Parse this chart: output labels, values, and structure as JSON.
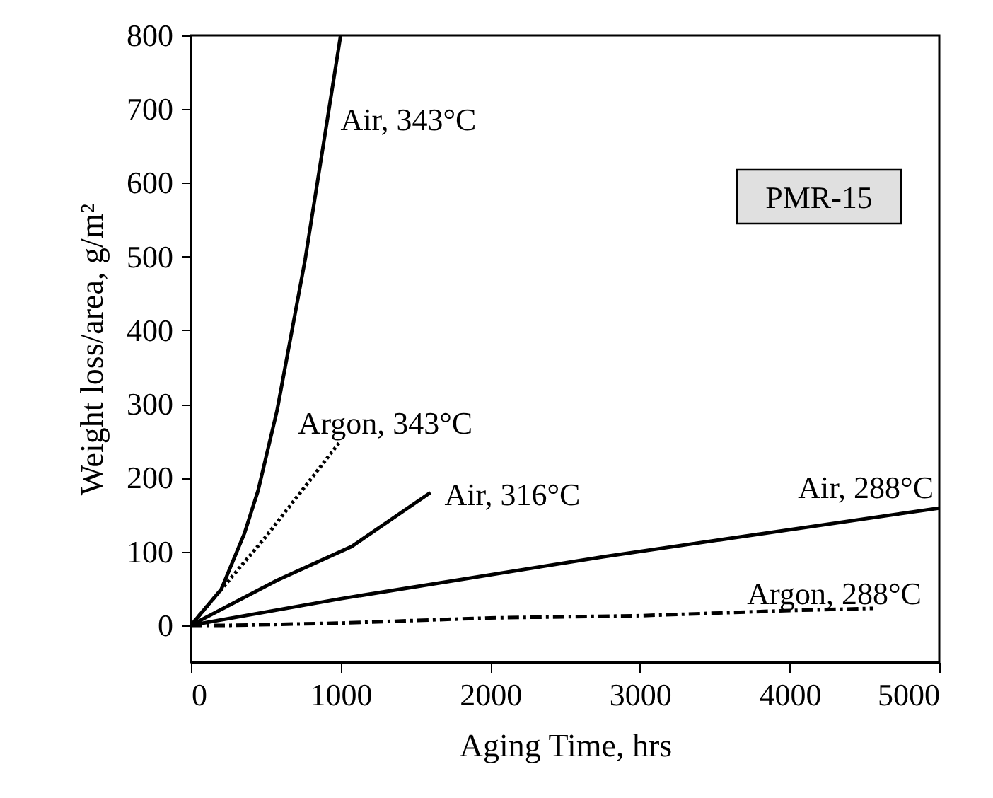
{
  "chart_data": {
    "type": "line",
    "xlabel": "Aging Time, hrs",
    "ylabel": "Weight loss/area, g/m²",
    "annotations": [
      "PMR-15"
    ],
    "xlim": [
      0,
      5000
    ],
    "xticks": [
      0,
      1000,
      2000,
      3000,
      4000,
      5000
    ],
    "ylim": [
      -50,
      800
    ],
    "yticks": [
      0,
      100,
      200,
      300,
      400,
      500,
      600,
      700,
      800
    ],
    "grid": false,
    "legend": false,
    "marker": "none",
    "series": [
      {
        "name": "Air, 343°C",
        "color": "#000000",
        "line_style": "solid",
        "x": [
          0,
          203,
          358,
          449,
          576,
          763,
          888,
          1000
        ],
        "values": [
          0,
          49,
          125,
          183,
          292,
          496,
          656,
          800
        ]
      },
      {
        "name": "Argon, 343°C",
        "color": "#000000",
        "line_style": "dotted",
        "x": [
          0,
          500,
          1000
        ],
        "values": [
          0,
          120,
          250
        ]
      },
      {
        "name": "Air, 316°C",
        "color": "#000000",
        "line_style": "solid",
        "x": [
          0,
          576,
          1075,
          1600
        ],
        "values": [
          0,
          61,
          107,
          180
        ]
      },
      {
        "name": "Air, 288°C",
        "color": "#000000",
        "line_style": "solid",
        "x": [
          0,
          1000,
          2757,
          5000
        ],
        "values": [
          0,
          36,
          93,
          159
        ]
      },
      {
        "name": "Argon, 288°C",
        "color": "#000000",
        "line_style": "dashed",
        "x": [
          0,
          262,
          1000,
          2000,
          3000,
          4000,
          4560
        ],
        "values": [
          0,
          0,
          3,
          10,
          13,
          20,
          23
        ]
      }
    ]
  }
}
